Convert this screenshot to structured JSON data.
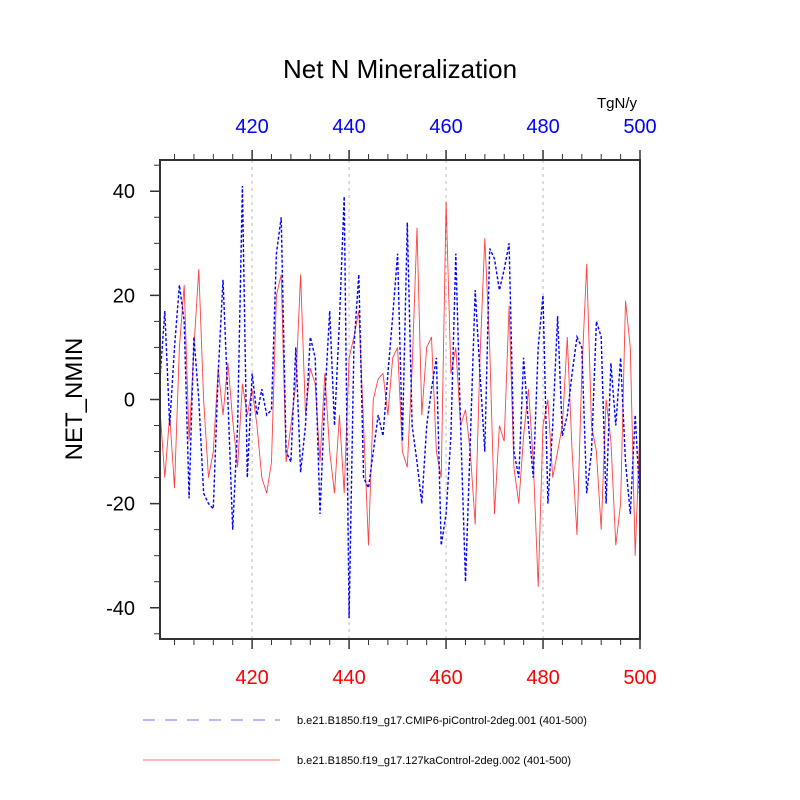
{
  "chart_data": {
    "type": "line",
    "title": "Net N Mineralization",
    "units": "TgN/y",
    "ylabel": "NET_NMIN",
    "xlabel": "",
    "xlim": [
      401,
      500
    ],
    "ylim": [
      -46,
      46
    ],
    "x_ticks": [
      420,
      440,
      460,
      480,
      500
    ],
    "x_tick_labels": [
      "420",
      "440",
      "460",
      "480",
      "500"
    ],
    "y_ticks": [
      40,
      20,
      0,
      -20,
      -40
    ],
    "y_tick_labels": [
      "40",
      "20",
      "0",
      "-20",
      "-40"
    ],
    "grid": "vertical dashed at major x ticks",
    "top_axis_color": "#0000ff",
    "bottom_axis_color": "#ff0000",
    "legend_position": "bottom",
    "x": [
      401,
      402,
      403,
      404,
      405,
      406,
      407,
      408,
      409,
      410,
      411,
      412,
      413,
      414,
      415,
      416,
      417,
      418,
      419,
      420,
      421,
      422,
      423,
      424,
      425,
      426,
      427,
      428,
      429,
      430,
      431,
      432,
      433,
      434,
      435,
      436,
      437,
      438,
      439,
      440,
      441,
      442,
      443,
      444,
      445,
      446,
      447,
      448,
      449,
      450,
      451,
      452,
      453,
      454,
      455,
      456,
      457,
      458,
      459,
      460,
      461,
      462,
      463,
      464,
      465,
      466,
      467,
      468,
      469,
      470,
      471,
      472,
      473,
      474,
      475,
      476,
      477,
      478,
      479,
      480,
      481,
      482,
      483,
      484,
      485,
      486,
      487,
      488,
      489,
      490,
      491,
      492,
      493,
      494,
      495,
      496,
      497,
      498,
      499,
      500
    ],
    "series": [
      {
        "name": "b.e21.B1850.f19_g17.CMIP6-piControl-2deg.001 (401-500)",
        "color": "#0000ff",
        "dash": "dashed",
        "values": [
          4,
          17,
          -5,
          10,
          22,
          15,
          -19,
          12,
          0,
          -18,
          -20,
          -21,
          5,
          23,
          0,
          -25,
          -5,
          41,
          -15,
          5,
          -3,
          2,
          -3,
          -2,
          28,
          35,
          -10,
          -12,
          10,
          -14,
          -5,
          12,
          8,
          -22,
          0,
          17,
          -5,
          15,
          39,
          -42,
          10,
          24,
          -15,
          -17,
          -10,
          -3,
          -7,
          5,
          16,
          28,
          -8,
          34,
          -5,
          -12,
          -20,
          -5,
          2,
          8,
          -28,
          -22,
          -7,
          28,
          -5,
          -35,
          -8,
          21,
          5,
          -10,
          29,
          27,
          21,
          25,
          30,
          -10,
          -15,
          8,
          -5,
          -15,
          10,
          20,
          -20,
          -5,
          16,
          -7,
          -3,
          5,
          12,
          10,
          -18,
          -10,
          15,
          12,
          -20,
          7,
          -5,
          8,
          -12,
          -22,
          -3,
          -20
        ]
      },
      {
        "name": "b.e21.B1850.f19_g17.127kaControl-2deg.002 (401-500)",
        "color": "#ff0000",
        "dash": "solid",
        "values": [
          -2,
          -15,
          -3,
          -17,
          10,
          22,
          -8,
          10,
          25,
          0,
          -15,
          -10,
          6,
          -3,
          7,
          -4,
          -13,
          3,
          -3,
          2,
          -5,
          -15,
          -18,
          -12,
          20,
          24,
          -12,
          -5,
          3,
          24,
          -3,
          6,
          3,
          -12,
          5,
          -10,
          -18,
          -3,
          -18,
          8,
          12,
          17,
          -5,
          -28,
          0,
          4,
          5,
          -3,
          8,
          10,
          -10,
          -13,
          6,
          33,
          -3,
          10,
          12,
          -10,
          -15,
          38,
          5,
          10,
          -5,
          -2,
          -10,
          -24,
          8,
          31,
          10,
          -22,
          -5,
          -8,
          18,
          -13,
          -20,
          -7,
          2,
          -12,
          -36,
          -5,
          0,
          -15,
          -10,
          -5,
          12,
          -10,
          -26,
          5,
          26,
          -5,
          -10,
          -25,
          0,
          -8,
          -28,
          -20,
          19,
          10,
          -30,
          -5
        ]
      }
    ]
  }
}
